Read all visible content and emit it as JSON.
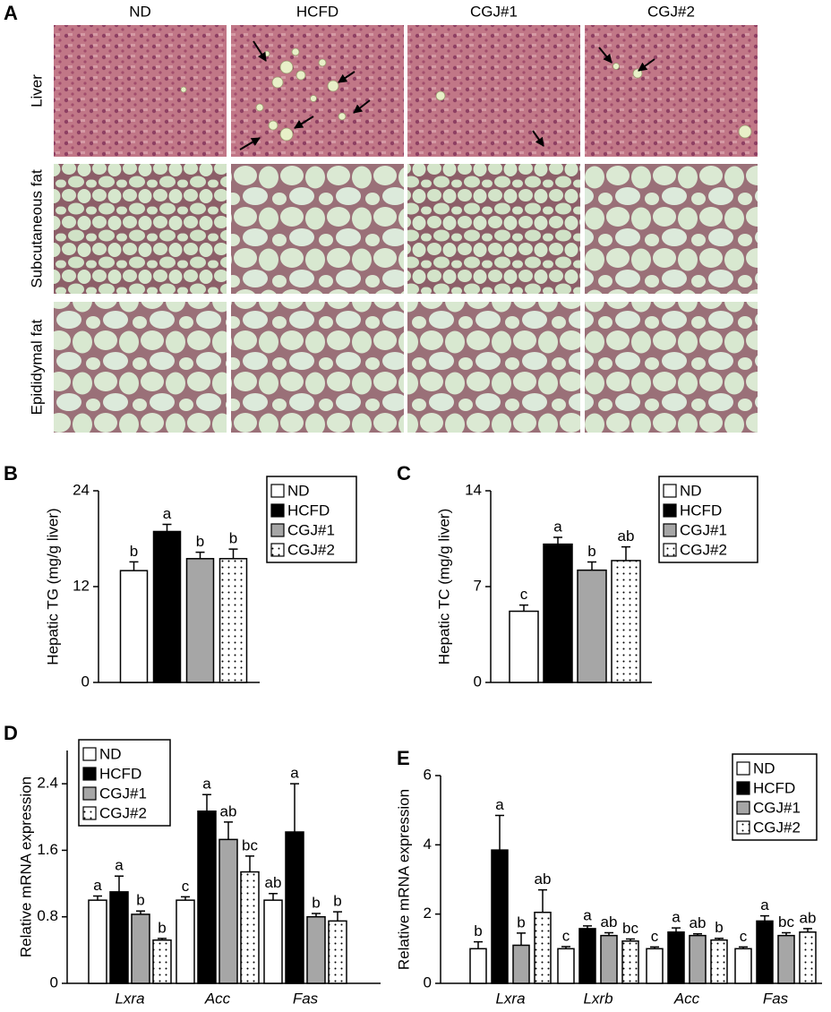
{
  "panel_a": {
    "label": "A",
    "columns": [
      "ND",
      "HCFD",
      "CGJ#1",
      "CGJ#2"
    ],
    "rows": [
      "Liver",
      "Subcutaneous fat",
      "Epididymal fat"
    ]
  },
  "chart_data": [
    {
      "type": "bar",
      "panel": "B",
      "y_label": "Hepatic TG (mg/g liver)",
      "categories": [
        null
      ],
      "ylim": [
        0,
        24
      ],
      "yticks": [
        0,
        12,
        24
      ],
      "legend": "upper right",
      "series": [
        {
          "name": "ND",
          "color": "#ffffff",
          "values": [
            14
          ],
          "errors": [
            1.1
          ],
          "letters": [
            "b"
          ]
        },
        {
          "name": "HCFD",
          "color": "#000000",
          "values": [
            18.9
          ],
          "errors": [
            0.9
          ],
          "letters": [
            "a"
          ]
        },
        {
          "name": "CGJ#1",
          "color": "#a6a6a6",
          "values": [
            15.5
          ],
          "errors": [
            0.8
          ],
          "letters": [
            "b"
          ]
        },
        {
          "name": "CGJ#2",
          "color": "#ffffff",
          "pattern": "dots",
          "values": [
            15.5
          ],
          "errors": [
            1.2
          ],
          "letters": [
            "b"
          ]
        }
      ]
    },
    {
      "type": "bar",
      "panel": "C",
      "y_label": "Hepatic TC (mg/g liver)",
      "categories": [
        null
      ],
      "ylim": [
        0,
        14
      ],
      "yticks": [
        0,
        7,
        14
      ],
      "legend": "upper right",
      "series": [
        {
          "name": "ND",
          "color": "#ffffff",
          "values": [
            5.2
          ],
          "errors": [
            0.45
          ],
          "letters": [
            "c"
          ]
        },
        {
          "name": "HCFD",
          "color": "#000000",
          "values": [
            10.1
          ],
          "errors": [
            0.5
          ],
          "letters": [
            "a"
          ]
        },
        {
          "name": "CGJ#1",
          "color": "#a6a6a6",
          "values": [
            8.2
          ],
          "errors": [
            0.6
          ],
          "letters": [
            "b"
          ]
        },
        {
          "name": "CGJ#2",
          "color": "#ffffff",
          "pattern": "dots",
          "values": [
            8.9
          ],
          "errors": [
            1.0
          ],
          "letters": [
            "ab"
          ]
        }
      ]
    },
    {
      "type": "bar",
      "panel": "D",
      "y_label": "Relative mRNA expression",
      "categories": [
        "Lxra",
        "Acc",
        "Fas"
      ],
      "ylim": [
        0,
        2.8
      ],
      "yticks": [
        0,
        0.8,
        1.6,
        2.4
      ],
      "legend": "upper left",
      "series": [
        {
          "name": "ND",
          "color": "#ffffff",
          "values": [
            1.0,
            1.0,
            1.0
          ],
          "errors": [
            0.05,
            0.04,
            0.08
          ],
          "letters": [
            "a",
            "c",
            "ab"
          ]
        },
        {
          "name": "HCFD",
          "color": "#000000",
          "values": [
            1.1,
            2.07,
            1.82
          ],
          "errors": [
            0.19,
            0.2,
            0.58
          ],
          "letters": [
            "a",
            "a",
            "a"
          ]
        },
        {
          "name": "CGJ#1",
          "color": "#a6a6a6",
          "values": [
            0.83,
            1.73,
            0.8
          ],
          "errors": [
            0.04,
            0.21,
            0.04
          ],
          "letters": [
            "b",
            "ab",
            "b"
          ]
        },
        {
          "name": "CGJ#2",
          "color": "#ffffff",
          "pattern": "dots",
          "values": [
            0.52,
            1.34,
            0.75
          ],
          "errors": [
            0.02,
            0.19,
            0.11
          ],
          "letters": [
            "b",
            "bc",
            "b"
          ]
        }
      ]
    },
    {
      "type": "bar",
      "panel": "E",
      "y_label": "Relative mRNA expression",
      "categories": [
        "Lxra",
        "Lxrb",
        "Acc",
        "Fas"
      ],
      "ylim": [
        0,
        6
      ],
      "yticks": [
        0,
        2,
        4,
        6
      ],
      "legend": "upper right",
      "series": [
        {
          "name": "ND",
          "color": "#ffffff",
          "values": [
            1.0,
            1.0,
            1.0,
            1.0
          ],
          "errors": [
            0.2,
            0.06,
            0.05,
            0.05
          ],
          "letters": [
            "b",
            "c",
            "c",
            "c"
          ]
        },
        {
          "name": "HCFD",
          "color": "#000000",
          "values": [
            3.85,
            1.58,
            1.48,
            1.8
          ],
          "errors": [
            1.0,
            0.08,
            0.12,
            0.15
          ],
          "letters": [
            "a",
            "a",
            "a",
            "a"
          ]
        },
        {
          "name": "CGJ#1",
          "color": "#a6a6a6",
          "values": [
            1.1,
            1.38,
            1.38,
            1.38
          ],
          "errors": [
            0.35,
            0.08,
            0.05,
            0.08
          ],
          "letters": [
            "b",
            "ab",
            "ab",
            "bc"
          ]
        },
        {
          "name": "CGJ#2",
          "color": "#ffffff",
          "pattern": "dots",
          "values": [
            2.05,
            1.22,
            1.25,
            1.48
          ],
          "errors": [
            0.65,
            0.06,
            0.05,
            0.1
          ],
          "letters": [
            "ab",
            "bc",
            "b",
            "ab"
          ]
        }
      ]
    }
  ]
}
